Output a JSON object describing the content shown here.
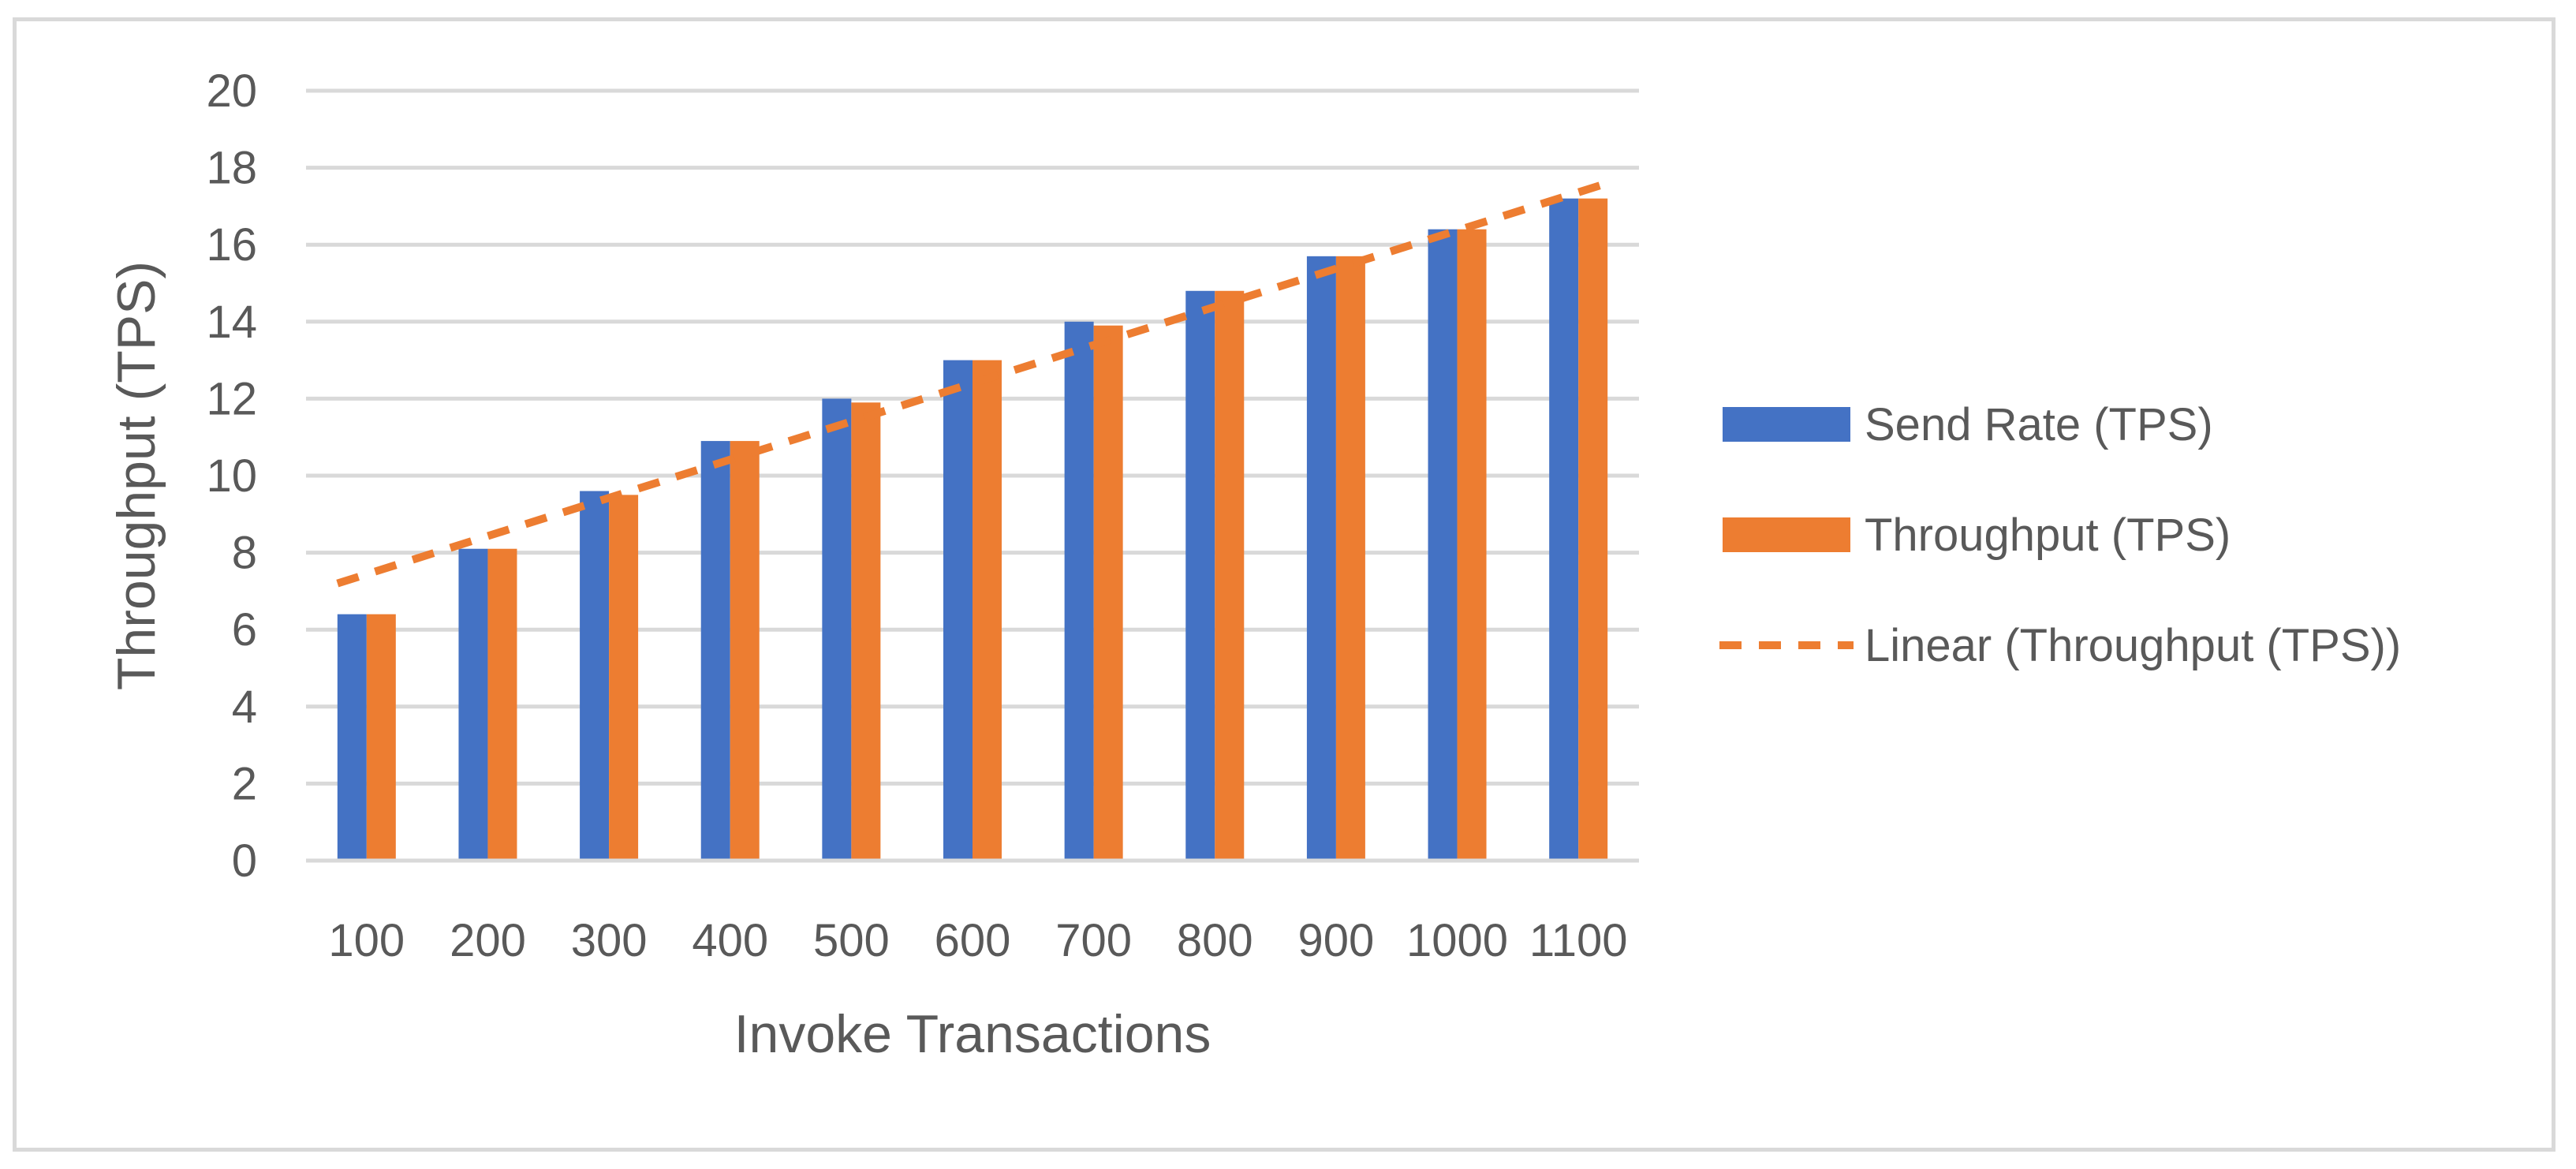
{
  "chart_data": {
    "type": "bar",
    "xlabel": "Invoke Transactions",
    "ylabel": "Throughput (TPS)",
    "ylim": [
      0,
      20
    ],
    "yticks": [
      0,
      2,
      4,
      6,
      8,
      10,
      12,
      14,
      16,
      18,
      20
    ],
    "grid": true,
    "legend_position": "right",
    "categories": [
      "100",
      "200",
      "300",
      "400",
      "500",
      "600",
      "700",
      "800",
      "900",
      "1000",
      "1100"
    ],
    "series": [
      {
        "name": "Send Rate (TPS)",
        "color": "#4472c4",
        "values": [
          6.4,
          8.1,
          9.6,
          10.9,
          12.0,
          13.0,
          14.0,
          14.8,
          15.7,
          16.4,
          17.2
        ]
      },
      {
        "name": "Throughput (TPS)",
        "color": "#ed7d31",
        "values": [
          6.4,
          8.1,
          9.5,
          10.9,
          11.9,
          13.0,
          13.9,
          14.8,
          15.7,
          16.4,
          17.2
        ]
      }
    ],
    "trendline": {
      "name": "Linear (Throughput (TPS))",
      "type": "linear",
      "of_series": "Throughput (TPS)",
      "color": "#ed7d31",
      "style": "dashed",
      "values": [
        7.2,
        8.3,
        9.3,
        10.3,
        11.3,
        12.4,
        13.4,
        14.5,
        15.5,
        16.5,
        17.6
      ]
    }
  }
}
